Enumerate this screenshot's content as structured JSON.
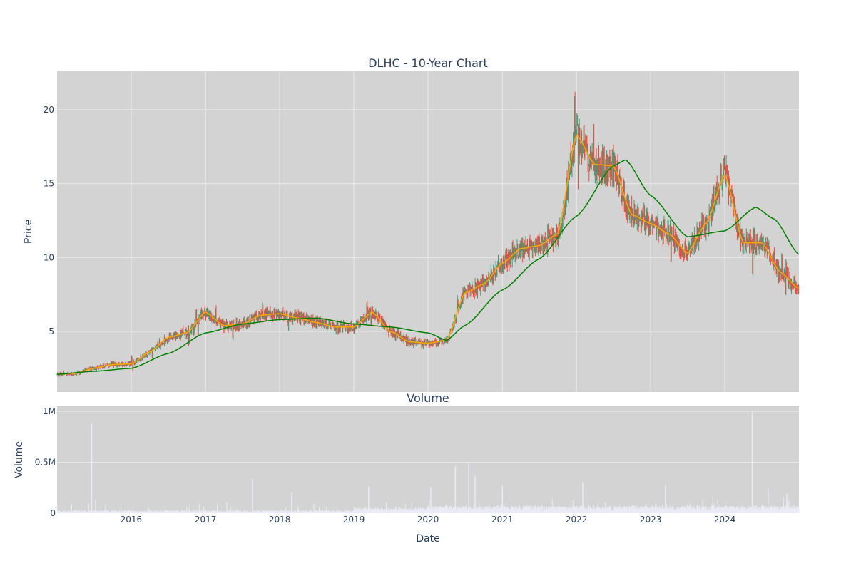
{
  "chart_data": [
    {
      "type": "candlestick",
      "title": "DLHC - 10-Year Chart",
      "xlabel": "",
      "ylabel": "Price",
      "xlim": [
        "2015-01-01",
        "2024-12-31"
      ],
      "ylim": [
        0.9,
        22.6
      ],
      "y_ticks": [
        5,
        10,
        15,
        20
      ],
      "y_tick_labels": [
        "5",
        "10",
        "15",
        "20"
      ],
      "x_ticks": [
        "2016-01-01",
        "2017-01-01",
        "2018-01-01",
        "2019-01-01",
        "2020-01-01",
        "2021-01-01",
        "2022-01-01",
        "2023-01-01",
        "2024-01-01"
      ],
      "grid": true,
      "colors": {
        "up": "#3d9970",
        "down": "#ff4136",
        "ma_short": "#ffa500",
        "ma_long": "#008000",
        "plot_bg": "#d3d3d3",
        "grid": "#ebebeb"
      },
      "ma_short_points": [
        [
          "2015-01-01",
          2.1
        ],
        [
          "2015-04-01",
          2.15
        ],
        [
          "2015-07-01",
          2.5
        ],
        [
          "2015-10-01",
          2.75
        ],
        [
          "2016-01-01",
          2.8
        ],
        [
          "2016-04-01",
          3.6
        ],
        [
          "2016-07-01",
          4.6
        ],
        [
          "2016-10-01",
          4.9
        ],
        [
          "2017-01-01",
          6.3
        ],
        [
          "2017-04-01",
          5.4
        ],
        [
          "2017-07-01",
          5.5
        ],
        [
          "2017-10-01",
          6.1
        ],
        [
          "2018-01-01",
          6.2
        ],
        [
          "2018-04-01",
          5.9
        ],
        [
          "2018-07-01",
          5.6
        ],
        [
          "2018-10-01",
          5.3
        ],
        [
          "2019-01-01",
          5.3
        ],
        [
          "2019-04-01",
          6.3
        ],
        [
          "2019-07-01",
          5.0
        ],
        [
          "2019-10-01",
          4.3
        ],
        [
          "2020-01-01",
          4.2
        ],
        [
          "2020-04-01",
          4.4
        ],
        [
          "2020-07-01",
          7.6
        ],
        [
          "2020-10-01",
          8.2
        ],
        [
          "2021-01-01",
          9.6
        ],
        [
          "2021-04-01",
          10.6
        ],
        [
          "2021-07-01",
          10.8
        ],
        [
          "2021-10-01",
          11.6
        ],
        [
          "2022-01-01",
          18.3
        ],
        [
          "2022-04-01",
          16.3
        ],
        [
          "2022-07-01",
          16.2
        ],
        [
          "2022-10-01",
          12.9
        ],
        [
          "2023-01-01",
          12.3
        ],
        [
          "2023-04-01",
          11.6
        ],
        [
          "2023-07-01",
          10.3
        ],
        [
          "2023-10-01",
          12.3
        ],
        [
          "2024-01-01",
          15.6
        ],
        [
          "2024-04-01",
          11.0
        ],
        [
          "2024-07-01",
          11.0
        ],
        [
          "2024-10-01",
          9.0
        ],
        [
          "2024-12-31",
          7.9
        ]
      ],
      "ma_long_points": [
        [
          "2015-01-01",
          2.1
        ],
        [
          "2015-07-01",
          2.3
        ],
        [
          "2016-01-01",
          2.5
        ],
        [
          "2016-07-01",
          3.5
        ],
        [
          "2017-01-01",
          4.9
        ],
        [
          "2017-07-01",
          5.5
        ],
        [
          "2018-01-01",
          5.8
        ],
        [
          "2018-07-01",
          5.9
        ],
        [
          "2019-01-01",
          5.5
        ],
        [
          "2019-07-01",
          5.3
        ],
        [
          "2020-01-01",
          4.9
        ],
        [
          "2020-04-01",
          4.4
        ],
        [
          "2020-07-01",
          5.4
        ],
        [
          "2021-01-01",
          7.8
        ],
        [
          "2021-07-01",
          9.9
        ],
        [
          "2022-01-01",
          12.8
        ],
        [
          "2022-07-01",
          16.2
        ],
        [
          "2022-09-01",
          16.6
        ],
        [
          "2023-01-01",
          14.2
        ],
        [
          "2023-07-01",
          11.4
        ],
        [
          "2024-01-01",
          11.8
        ],
        [
          "2024-06-01",
          13.4
        ],
        [
          "2024-09-01",
          12.6
        ],
        [
          "2024-12-31",
          10.2
        ]
      ]
    },
    {
      "type": "bar",
      "title": "Volume",
      "xlabel": "Date",
      "ylabel": "Volume",
      "ylim": [
        0,
        1050000
      ],
      "y_ticks": [
        0,
        500000,
        1000000
      ],
      "y_tick_labels": [
        "0",
        "0.5M",
        "1M"
      ],
      "x_ticks": [
        "2016-01-01",
        "2017-01-01",
        "2018-01-01",
        "2019-01-01",
        "2020-01-01",
        "2021-01-01",
        "2022-01-01",
        "2023-01-01",
        "2024-01-01"
      ],
      "x_tick_labels": [
        "2016",
        "2017",
        "2018",
        "2019",
        "2020",
        "2021",
        "2022",
        "2023",
        "2024"
      ],
      "grid": true,
      "colors": {
        "bar": "#ebebf7"
      },
      "spikes": [
        [
          "2015-06-20",
          880000
        ],
        [
          "2015-07-10",
          130000
        ],
        [
          "2017-08-20",
          340000
        ],
        [
          "2018-03-01",
          200000
        ],
        [
          "2019-03-15",
          260000
        ],
        [
          "2020-01-15",
          250000
        ],
        [
          "2020-05-15",
          460000
        ],
        [
          "2020-07-20",
          500000
        ],
        [
          "2020-08-20",
          370000
        ],
        [
          "2021-01-01",
          270000
        ],
        [
          "2022-02-01",
          300000
        ],
        [
          "2023-03-15",
          280000
        ],
        [
          "2024-05-15",
          990000
        ],
        [
          "2024-08-01",
          250000
        ],
        [
          "2024-11-01",
          190000
        ]
      ]
    }
  ]
}
